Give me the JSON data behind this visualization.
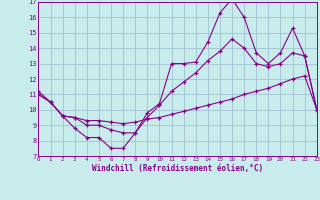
{
  "bg_color": "#c8ecec",
  "line_color": "#880088",
  "grid_color": "#99bbcc",
  "xlim": [
    0,
    23
  ],
  "ylim": [
    7,
    17
  ],
  "xticks": [
    0,
    1,
    2,
    3,
    4,
    5,
    6,
    7,
    8,
    9,
    10,
    11,
    12,
    13,
    14,
    15,
    16,
    17,
    18,
    19,
    20,
    21,
    22,
    23
  ],
  "yticks": [
    7,
    8,
    9,
    10,
    11,
    12,
    13,
    14,
    15,
    16,
    17
  ],
  "xlabel": "Windchill (Refroidissement éolien,°C)",
  "line1_x": [
    0,
    1,
    2,
    3,
    4,
    5,
    6,
    7,
    8,
    9,
    10,
    11,
    12,
    13,
    14,
    15,
    16,
    17,
    18,
    19,
    20,
    21,
    22,
    23
  ],
  "line1_y": [
    11.2,
    10.5,
    9.6,
    8.8,
    8.2,
    8.2,
    7.5,
    7.5,
    8.5,
    9.8,
    10.4,
    13.0,
    13.0,
    13.1,
    14.4,
    16.3,
    17.2,
    16.0,
    13.7,
    13.0,
    13.7,
    15.3,
    13.5,
    10.0
  ],
  "line2_x": [
    0,
    1,
    2,
    3,
    4,
    5,
    6,
    7,
    8,
    9,
    10,
    11,
    12,
    13,
    14,
    15,
    16,
    17,
    18,
    19,
    20,
    21,
    22,
    23
  ],
  "line2_y": [
    11.0,
    10.5,
    9.6,
    9.5,
    9.0,
    9.0,
    8.7,
    8.5,
    8.5,
    9.5,
    10.3,
    11.2,
    11.8,
    12.4,
    13.2,
    13.8,
    14.6,
    14.0,
    13.0,
    12.8,
    13.0,
    13.7,
    13.5,
    10.0
  ],
  "line3_x": [
    0,
    1,
    2,
    3,
    4,
    5,
    6,
    7,
    8,
    9,
    10,
    11,
    12,
    13,
    14,
    15,
    16,
    17,
    18,
    19,
    20,
    21,
    22,
    23
  ],
  "line3_y": [
    11.0,
    10.5,
    9.6,
    9.5,
    9.3,
    9.3,
    9.2,
    9.1,
    9.2,
    9.4,
    9.5,
    9.7,
    9.9,
    10.1,
    10.3,
    10.5,
    10.7,
    11.0,
    11.2,
    11.4,
    11.7,
    12.0,
    12.2,
    10.0
  ]
}
